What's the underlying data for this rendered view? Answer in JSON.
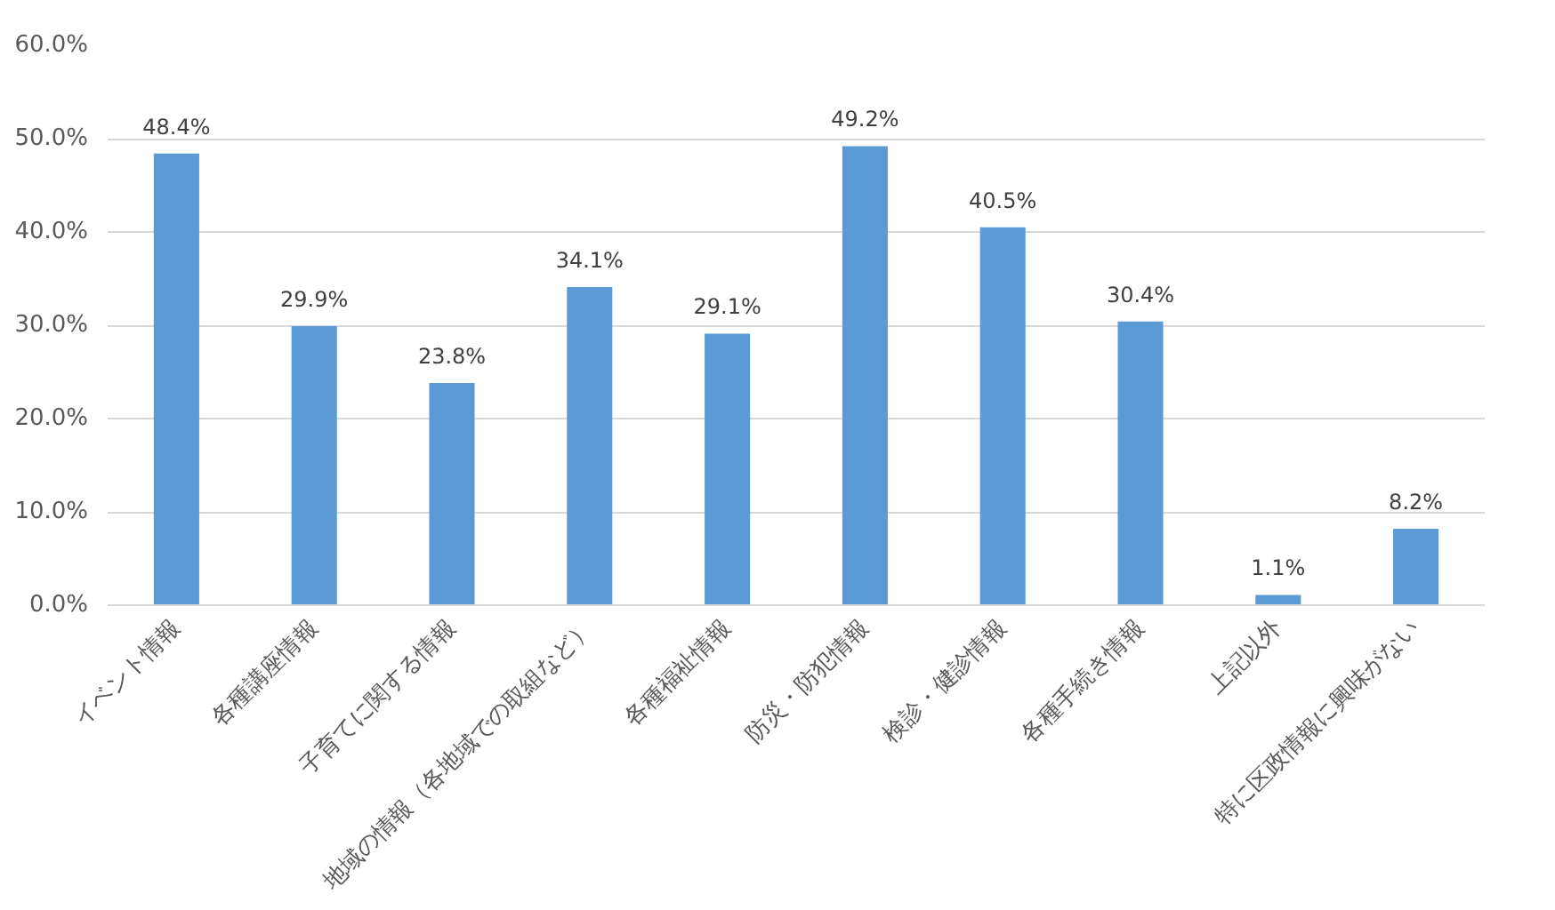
{
  "chart_data": {
    "type": "bar",
    "categories": [
      "イベント情報",
      "各種講座情報",
      "子育てに関する情報",
      "地域の情報（各地域での取組など）",
      "各種福祉情報",
      "防災・防犯情報",
      "検診・健診情報",
      "各種手続き情報",
      "上記以外",
      "特に区政情報に興味がない"
    ],
    "values": [
      48.4,
      29.9,
      23.8,
      34.1,
      29.1,
      49.2,
      40.5,
      30.4,
      1.1,
      8.2
    ],
    "value_labels": [
      "48.4%",
      "29.9%",
      "23.8%",
      "34.1%",
      "29.1%",
      "49.2%",
      "40.5%",
      "30.4%",
      "1.1%",
      "8.2%"
    ],
    "color": "#5b9bd5",
    "ylim": [
      0,
      60
    ],
    "yticks": [
      {
        "value": 0,
        "label": "0.0%"
      },
      {
        "value": 10,
        "label": "10.0%"
      },
      {
        "value": 20,
        "label": "20.0%"
      },
      {
        "value": 30,
        "label": "30.0%"
      },
      {
        "value": 40,
        "label": "40.0%"
      },
      {
        "value": 50,
        "label": "50.0%"
      },
      {
        "value": 60,
        "label": "60.0%"
      }
    ],
    "grid": "y"
  }
}
